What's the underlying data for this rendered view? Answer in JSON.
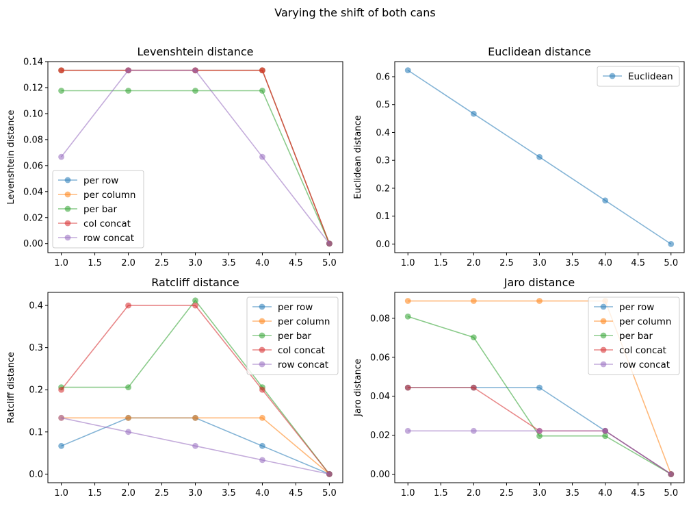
{
  "figure": {
    "title": "Varying the shift of both cans"
  },
  "colors": {
    "blue": "#1f77b4",
    "orange": "#ff7f0e",
    "green": "#2ca02c",
    "red": "#d62728",
    "purple": "#9467bd"
  },
  "chart_data": [
    {
      "type": "line",
      "title": "Levenshtein distance",
      "xlabel": "",
      "ylabel": "Levenshtein distance",
      "x": [
        1,
        2,
        3,
        4,
        5
      ],
      "xlim": [
        0.8,
        5.2
      ],
      "ylim": [
        -0.007,
        0.14
      ],
      "xticks": [
        "1.0",
        "1.5",
        "2.0",
        "2.5",
        "3.0",
        "3.5",
        "4.0",
        "4.5",
        "5.0"
      ],
      "yticks": [
        "0.00",
        "0.02",
        "0.04",
        "0.06",
        "0.08",
        "0.10",
        "0.12",
        "0.14"
      ],
      "legend_position": "lower-left",
      "series": [
        {
          "name": "per row",
          "color": "#1f77b4",
          "values": [
            0.1333,
            0.1333,
            0.1333,
            0.1333,
            0.0
          ]
        },
        {
          "name": "per column",
          "color": "#ff7f0e",
          "values": [
            0.1333,
            0.1333,
            0.1333,
            0.1333,
            0.0
          ]
        },
        {
          "name": "per bar",
          "color": "#2ca02c",
          "values": [
            0.1176,
            0.1176,
            0.1176,
            0.1176,
            0.0
          ]
        },
        {
          "name": "col concat",
          "color": "#d62728",
          "values": [
            0.1333,
            0.1333,
            0.1333,
            0.1333,
            0.0
          ]
        },
        {
          "name": "row concat",
          "color": "#9467bd",
          "values": [
            0.0667,
            0.1333,
            0.1333,
            0.0667,
            0.0
          ]
        }
      ]
    },
    {
      "type": "line",
      "title": "Euclidean distance",
      "xlabel": "",
      "ylabel": "Euclidean distance",
      "x": [
        1,
        2,
        3,
        4,
        5
      ],
      "xlim": [
        0.8,
        5.2
      ],
      "ylim": [
        -0.031,
        0.654
      ],
      "xticks": [
        "1.0",
        "1.5",
        "2.0",
        "2.5",
        "3.0",
        "3.5",
        "4.0",
        "4.5",
        "5.0"
      ],
      "yticks": [
        "0.0",
        "0.1",
        "0.2",
        "0.3",
        "0.4",
        "0.5",
        "0.6"
      ],
      "legend_position": "upper-right",
      "series": [
        {
          "name": "Euclidean",
          "color": "#1f77b4",
          "values": [
            0.623,
            0.467,
            0.312,
            0.156,
            0.0
          ]
        }
      ]
    },
    {
      "type": "line",
      "title": "Ratcliff distance",
      "xlabel": "",
      "ylabel": "Ratcliff distance",
      "x": [
        1,
        2,
        3,
        4,
        5
      ],
      "xlim": [
        0.8,
        5.2
      ],
      "ylim": [
        -0.0205,
        0.431
      ],
      "xticks": [
        "1.0",
        "1.5",
        "2.0",
        "2.5",
        "3.0",
        "3.5",
        "4.0",
        "4.5",
        "5.0"
      ],
      "yticks": [
        "0.0",
        "0.1",
        "0.2",
        "0.3",
        "0.4"
      ],
      "legend_position": "upper-right",
      "series": [
        {
          "name": "per row",
          "color": "#1f77b4",
          "values": [
            0.0667,
            0.1333,
            0.1333,
            0.0667,
            0.0
          ]
        },
        {
          "name": "per column",
          "color": "#ff7f0e",
          "values": [
            0.1333,
            0.1333,
            0.1333,
            0.1333,
            0.0
          ]
        },
        {
          "name": "per bar",
          "color": "#2ca02c",
          "values": [
            0.2059,
            0.2059,
            0.4118,
            0.2059,
            0.0
          ]
        },
        {
          "name": "col concat",
          "color": "#d62728",
          "values": [
            0.2,
            0.4,
            0.4,
            0.2,
            0.0
          ]
        },
        {
          "name": "row concat",
          "color": "#9467bd",
          "values": [
            0.1333,
            0.1,
            0.0667,
            0.0333,
            0.0
          ]
        }
      ]
    },
    {
      "type": "line",
      "title": "Jaro distance",
      "xlabel": "",
      "ylabel": "Jaro distance",
      "x": [
        1,
        2,
        3,
        4,
        5
      ],
      "xlim": [
        0.8,
        5.2
      ],
      "ylim": [
        -0.0044,
        0.0933
      ],
      "xticks": [
        "1.0",
        "1.5",
        "2.0",
        "2.5",
        "3.0",
        "3.5",
        "4.0",
        "4.5",
        "5.0"
      ],
      "yticks": [
        "0.00",
        "0.02",
        "0.04",
        "0.06",
        "0.08"
      ],
      "legend_position": "upper-right",
      "series": [
        {
          "name": "per row",
          "color": "#1f77b4",
          "values": [
            0.0444,
            0.0444,
            0.0444,
            0.0222,
            0.0
          ]
        },
        {
          "name": "per column",
          "color": "#ff7f0e",
          "values": [
            0.0889,
            0.0889,
            0.0889,
            0.0889,
            0.0
          ]
        },
        {
          "name": "per bar",
          "color": "#2ca02c",
          "values": [
            0.0809,
            0.0702,
            0.0196,
            0.0196,
            0.0
          ]
        },
        {
          "name": "col concat",
          "color": "#d62728",
          "values": [
            0.0444,
            0.0444,
            0.0222,
            0.0222,
            0.0
          ]
        },
        {
          "name": "row concat",
          "color": "#9467bd",
          "values": [
            0.0222,
            0.0222,
            0.0222,
            0.0222,
            0.0
          ]
        }
      ]
    }
  ]
}
